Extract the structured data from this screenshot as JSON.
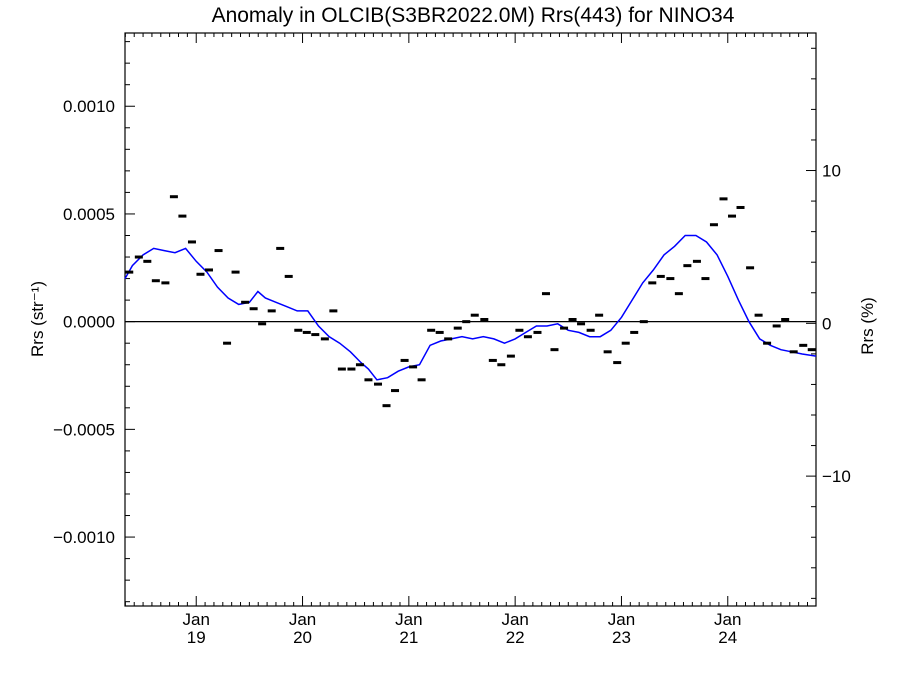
{
  "chart_data": {
    "type": "scatter",
    "title": "Anomaly in OLCIB(S3BR2022.0M) Rrs(443) for NINO34",
    "ylabel_left": "Rrs (str⁻¹)",
    "ylabel_right": "Rrs (%)",
    "ylim": [
      -0.00132,
      0.00134
    ],
    "ylim_right": [
      -18.5,
      19.0
    ],
    "y_ticks_left": [
      {
        "value": 0.001,
        "label": "0.0010"
      },
      {
        "value": 0.0005,
        "label": "0.0005"
      },
      {
        "value": 0.0,
        "label": "0.0000"
      },
      {
        "value": -0.0005,
        "label": "−0.0005"
      },
      {
        "value": -0.001,
        "label": "−0.0010"
      }
    ],
    "y_ticks_right": [
      {
        "value": 10,
        "label": "10"
      },
      {
        "value": 0,
        "label": "0"
      },
      {
        "value": -10,
        "label": "−10"
      }
    ],
    "xlim": [
      2018.33,
      2024.83
    ],
    "x_ticks": [
      {
        "value": 2019.0,
        "label_month": "Jan",
        "label_year": "19"
      },
      {
        "value": 2020.0,
        "label_month": "Jan",
        "label_year": "20"
      },
      {
        "value": 2021.0,
        "label_month": "Jan",
        "label_year": "21"
      },
      {
        "value": 2022.0,
        "label_month": "Jan",
        "label_year": "22"
      },
      {
        "value": 2023.0,
        "label_month": "Jan",
        "label_year": "23"
      },
      {
        "value": 2024.0,
        "label_month": "Jan",
        "label_year": "24"
      }
    ],
    "zero_line": 0,
    "series": [
      {
        "kind": "monthly-markers",
        "color": "#000000",
        "x": [
          2018.37,
          2018.46,
          2018.54,
          2018.62,
          2018.71,
          2018.79,
          2018.87,
          2018.96,
          2019.04,
          2019.12,
          2019.21,
          2019.29,
          2019.37,
          2019.46,
          2019.54,
          2019.62,
          2019.71,
          2019.79,
          2019.87,
          2019.96,
          2020.04,
          2020.12,
          2020.21,
          2020.29,
          2020.37,
          2020.46,
          2020.54,
          2020.62,
          2020.71,
          2020.79,
          2020.87,
          2020.96,
          2021.04,
          2021.12,
          2021.21,
          2021.29,
          2021.37,
          2021.46,
          2021.54,
          2021.62,
          2021.71,
          2021.79,
          2021.87,
          2021.96,
          2022.04,
          2022.12,
          2022.21,
          2022.29,
          2022.37,
          2022.46,
          2022.54,
          2022.62,
          2022.71,
          2022.79,
          2022.87,
          2022.96,
          2023.04,
          2023.12,
          2023.21,
          2023.29,
          2023.37,
          2023.46,
          2023.54,
          2023.62,
          2023.71,
          2023.79,
          2023.87,
          2023.96,
          2024.04,
          2024.12,
          2024.21,
          2024.29,
          2024.37,
          2024.46,
          2024.54,
          2024.62,
          2024.71,
          2024.79
        ],
        "y": [
          0.00023,
          0.0003,
          0.00028,
          0.00019,
          0.00018,
          0.00058,
          0.00049,
          0.00037,
          0.00022,
          0.00024,
          0.00033,
          -0.0001,
          0.00023,
          9e-05,
          6e-05,
          -1e-05,
          5e-05,
          0.00034,
          0.00021,
          -4e-05,
          -5e-05,
          -6e-05,
          -8e-05,
          5e-05,
          -0.00022,
          -0.00022,
          -0.0002,
          -0.00027,
          -0.00029,
          -0.00039,
          -0.00032,
          -0.00018,
          -0.00021,
          -0.00027,
          -4e-05,
          -5e-05,
          -8e-05,
          -3e-05,
          0.0,
          3e-05,
          1e-05,
          -0.00018,
          -0.0002,
          -0.00016,
          -4e-05,
          -7e-05,
          -5e-05,
          0.00013,
          -0.00013,
          -3e-05,
          1e-05,
          -1e-05,
          -4e-05,
          3e-05,
          -0.00014,
          -0.00019,
          -0.0001,
          -5e-05,
          0.0,
          0.00018,
          0.00021,
          0.0002,
          0.00013,
          0.00026,
          0.00028,
          0.0002,
          0.00045,
          0.00057,
          0.00049,
          0.00053,
          0.00025,
          3e-05,
          -0.0001,
          -2e-05,
          1e-05,
          -0.00014,
          -0.00011,
          -0.00013
        ]
      },
      {
        "kind": "running-mean",
        "color": "#0000ff",
        "x": [
          2018.33,
          2018.4,
          2018.5,
          2018.6,
          2018.7,
          2018.8,
          2018.9,
          2019.0,
          2019.1,
          2019.2,
          2019.3,
          2019.4,
          2019.5,
          2019.58,
          2019.65,
          2019.75,
          2019.85,
          2019.95,
          2020.05,
          2020.15,
          2020.25,
          2020.35,
          2020.45,
          2020.55,
          2020.62,
          2020.7,
          2020.8,
          2020.9,
          2021.0,
          2021.1,
          2021.2,
          2021.3,
          2021.4,
          2021.5,
          2021.6,
          2021.7,
          2021.8,
          2021.9,
          2022.0,
          2022.1,
          2022.2,
          2022.3,
          2022.4,
          2022.5,
          2022.6,
          2022.7,
          2022.8,
          2022.9,
          2023.0,
          2023.1,
          2023.2,
          2023.3,
          2023.4,
          2023.5,
          2023.6,
          2023.7,
          2023.8,
          2023.9,
          2024.0,
          2024.1,
          2024.2,
          2024.3,
          2024.4,
          2024.5,
          2024.6,
          2024.7,
          2024.83
        ],
        "y": [
          0.0002,
          0.00026,
          0.00031,
          0.00034,
          0.00033,
          0.00032,
          0.00034,
          0.00028,
          0.00023,
          0.00016,
          0.00011,
          8e-05,
          9e-05,
          0.00014,
          0.00011,
          9e-05,
          7e-05,
          5e-05,
          5e-05,
          -2e-05,
          -7e-05,
          -0.0001,
          -0.00014,
          -0.00019,
          -0.00022,
          -0.00027,
          -0.00026,
          -0.00023,
          -0.00021,
          -0.0002,
          -0.00011,
          -9e-05,
          -8e-05,
          -7e-05,
          -8e-05,
          -7e-05,
          -8e-05,
          -0.0001,
          -8e-05,
          -5e-05,
          -2e-05,
          -2e-05,
          -1e-05,
          -4e-05,
          -5e-05,
          -7e-05,
          -7e-05,
          -4e-05,
          2e-05,
          0.0001,
          0.00018,
          0.00024,
          0.00031,
          0.00035,
          0.0004,
          0.0004,
          0.00037,
          0.00031,
          0.00021,
          0.0001,
          0.0,
          -8e-05,
          -0.00011,
          -0.00013,
          -0.00014,
          -0.00015,
          -0.00016
        ]
      }
    ]
  }
}
